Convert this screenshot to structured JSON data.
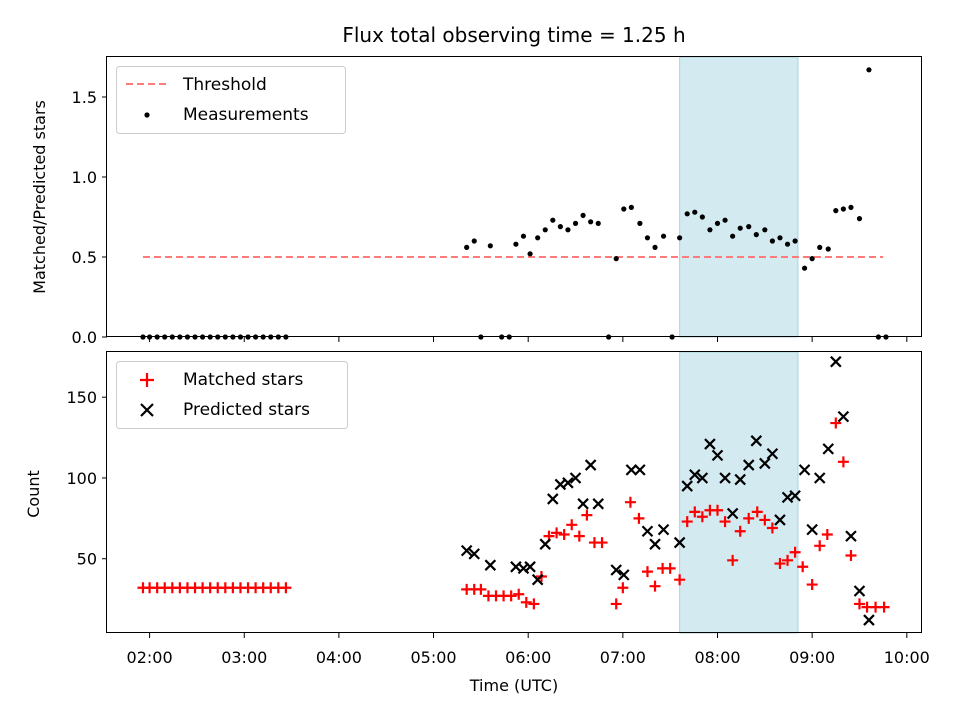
{
  "chart_data": [
    {
      "type": "scatter",
      "title": "Flux total observing time = 1.25 h",
      "ylabel": "Matched/Predicted stars",
      "xlabel": "",
      "xlim": [
        1.55,
        10.15
      ],
      "ylim": [
        0,
        1.75
      ],
      "yticks": [
        0.0,
        0.5,
        1.0,
        1.5
      ],
      "ytick_labels": [
        "0.0",
        "0.5",
        "1.0",
        "1.5"
      ],
      "xticks": [
        2,
        3,
        4,
        5,
        6,
        7,
        8,
        9,
        10
      ],
      "shaded_span": [
        7.6,
        8.85
      ],
      "shade_color": "#d3eaf1",
      "legend": "top-left",
      "threshold": {
        "name": "Threshold",
        "y": 0.5,
        "x": [
          1.93,
          9.75
        ],
        "color": "#ff7b7b"
      },
      "series": [
        {
          "name": "Measurements",
          "color": "#000000",
          "points": [
            [
              1.93,
              0.0
            ],
            [
              2.0,
              0.0
            ],
            [
              2.08,
              0.0
            ],
            [
              2.16,
              0.0
            ],
            [
              2.24,
              0.0
            ],
            [
              2.32,
              0.0
            ],
            [
              2.4,
              0.0
            ],
            [
              2.48,
              0.0
            ],
            [
              2.56,
              0.0
            ],
            [
              2.64,
              0.0
            ],
            [
              2.72,
              0.0
            ],
            [
              2.8,
              0.0
            ],
            [
              2.88,
              0.0
            ],
            [
              2.96,
              0.0
            ],
            [
              3.04,
              0.0
            ],
            [
              3.12,
              0.0
            ],
            [
              3.2,
              0.0
            ],
            [
              3.28,
              0.0
            ],
            [
              3.36,
              0.0
            ],
            [
              3.44,
              0.0
            ],
            [
              5.35,
              0.56
            ],
            [
              5.43,
              0.6
            ],
            [
              5.5,
              0.0
            ],
            [
              5.6,
              0.57
            ],
            [
              5.72,
              0.0
            ],
            [
              5.8,
              0.0
            ],
            [
              5.87,
              0.58
            ],
            [
              5.95,
              0.63
            ],
            [
              6.02,
              0.52
            ],
            [
              6.1,
              0.62
            ],
            [
              6.18,
              0.67
            ],
            [
              6.26,
              0.73
            ],
            [
              6.34,
              0.69
            ],
            [
              6.42,
              0.67
            ],
            [
              6.5,
              0.71
            ],
            [
              6.58,
              0.76
            ],
            [
              6.66,
              0.72
            ],
            [
              6.74,
              0.71
            ],
            [
              6.85,
              0.0
            ],
            [
              6.93,
              0.49
            ],
            [
              7.01,
              0.8
            ],
            [
              7.09,
              0.81
            ],
            [
              7.18,
              0.71
            ],
            [
              7.26,
              0.62
            ],
            [
              7.34,
              0.56
            ],
            [
              7.43,
              0.63
            ],
            [
              7.52,
              0.0
            ],
            [
              7.6,
              0.62
            ],
            [
              7.68,
              0.77
            ],
            [
              7.76,
              0.78
            ],
            [
              7.84,
              0.75
            ],
            [
              7.92,
              0.67
            ],
            [
              8.0,
              0.71
            ],
            [
              8.08,
              0.73
            ],
            [
              8.16,
              0.63
            ],
            [
              8.24,
              0.68
            ],
            [
              8.33,
              0.69
            ],
            [
              8.41,
              0.64
            ],
            [
              8.5,
              0.67
            ],
            [
              8.58,
              0.6
            ],
            [
              8.66,
              0.62
            ],
            [
              8.74,
              0.58
            ],
            [
              8.82,
              0.6
            ],
            [
              8.92,
              0.43
            ],
            [
              9.0,
              0.49
            ],
            [
              9.08,
              0.56
            ],
            [
              9.17,
              0.55
            ],
            [
              9.25,
              0.79
            ],
            [
              9.33,
              0.8
            ],
            [
              9.41,
              0.81
            ],
            [
              9.5,
              0.74
            ],
            [
              9.6,
              1.67
            ],
            [
              9.7,
              0.0
            ],
            [
              9.78,
              0.0
            ]
          ]
        }
      ]
    },
    {
      "type": "scatter",
      "title": "",
      "ylabel": "Count",
      "xlabel": "Time (UTC)",
      "xlim": [
        1.55,
        10.15
      ],
      "ylim": [
        4,
        178
      ],
      "yticks": [
        50,
        100,
        150
      ],
      "ytick_labels": [
        "50",
        "100",
        "150"
      ],
      "xticks": [
        2,
        3,
        4,
        5,
        6,
        7,
        8,
        9,
        10
      ],
      "xtick_labels": [
        "02:00",
        "03:00",
        "04:00",
        "05:00",
        "06:00",
        "07:00",
        "08:00",
        "09:00",
        "10:00"
      ],
      "shaded_span": [
        7.6,
        8.85
      ],
      "shade_color": "#d3eaf1",
      "legend": "top-left",
      "series": [
        {
          "name": "Matched stars",
          "color": "#ff0000",
          "marker": "plus",
          "points": [
            [
              1.93,
              32
            ],
            [
              2.0,
              32
            ],
            [
              2.08,
              32
            ],
            [
              2.16,
              32
            ],
            [
              2.24,
              32
            ],
            [
              2.32,
              32
            ],
            [
              2.4,
              32
            ],
            [
              2.48,
              32
            ],
            [
              2.56,
              32
            ],
            [
              2.64,
              32
            ],
            [
              2.72,
              32
            ],
            [
              2.8,
              32
            ],
            [
              2.88,
              32
            ],
            [
              2.96,
              32
            ],
            [
              3.04,
              32
            ],
            [
              3.12,
              32
            ],
            [
              3.2,
              32
            ],
            [
              3.28,
              32
            ],
            [
              3.36,
              32
            ],
            [
              3.44,
              32
            ],
            [
              5.35,
              31
            ],
            [
              5.43,
              31
            ],
            [
              5.5,
              31
            ],
            [
              5.58,
              27
            ],
            [
              5.66,
              27
            ],
            [
              5.74,
              27
            ],
            [
              5.82,
              27
            ],
            [
              5.9,
              28
            ],
            [
              5.98,
              23
            ],
            [
              6.06,
              22
            ],
            [
              6.14,
              39
            ],
            [
              6.22,
              64
            ],
            [
              6.3,
              66
            ],
            [
              6.38,
              65
            ],
            [
              6.46,
              71
            ],
            [
              6.54,
              64
            ],
            [
              6.62,
              77
            ],
            [
              6.7,
              60
            ],
            [
              6.78,
              60
            ],
            [
              6.93,
              22
            ],
            [
              7.0,
              32
            ],
            [
              7.08,
              85
            ],
            [
              7.17,
              75
            ],
            [
              7.26,
              42
            ],
            [
              7.34,
              33
            ],
            [
              7.42,
              44
            ],
            [
              7.5,
              44
            ],
            [
              7.6,
              37
            ],
            [
              7.68,
              73
            ],
            [
              7.76,
              79
            ],
            [
              7.84,
              76
            ],
            [
              7.92,
              80
            ],
            [
              8.0,
              80
            ],
            [
              8.08,
              73
            ],
            [
              8.16,
              49
            ],
            [
              8.24,
              67
            ],
            [
              8.33,
              75
            ],
            [
              8.42,
              79
            ],
            [
              8.5,
              74
            ],
            [
              8.58,
              69
            ],
            [
              8.66,
              47
            ],
            [
              8.74,
              49
            ],
            [
              8.82,
              54
            ],
            [
              8.9,
              45
            ],
            [
              9.0,
              34
            ],
            [
              9.08,
              58
            ],
            [
              9.16,
              65
            ],
            [
              9.25,
              134
            ],
            [
              9.33,
              110
            ],
            [
              9.41,
              52
            ],
            [
              9.5,
              22
            ],
            [
              9.58,
              20
            ],
            [
              9.67,
              20
            ],
            [
              9.76,
              20
            ]
          ]
        },
        {
          "name": "Predicted stars",
          "color": "#000000",
          "marker": "x",
          "points": [
            [
              5.35,
              55
            ],
            [
              5.43,
              53
            ],
            [
              5.6,
              46
            ],
            [
              5.87,
              45
            ],
            [
              5.95,
              44
            ],
            [
              6.02,
              45
            ],
            [
              6.1,
              37
            ],
            [
              6.18,
              59
            ],
            [
              6.26,
              87
            ],
            [
              6.34,
              96
            ],
            [
              6.42,
              97
            ],
            [
              6.5,
              100
            ],
            [
              6.58,
              84
            ],
            [
              6.66,
              108
            ],
            [
              6.74,
              84
            ],
            [
              6.93,
              43
            ],
            [
              7.01,
              40
            ],
            [
              7.09,
              105
            ],
            [
              7.18,
              105
            ],
            [
              7.26,
              67
            ],
            [
              7.34,
              59
            ],
            [
              7.43,
              68
            ],
            [
              7.6,
              60
            ],
            [
              7.68,
              95
            ],
            [
              7.76,
              102
            ],
            [
              7.84,
              100
            ],
            [
              7.92,
              121
            ],
            [
              8.0,
              114
            ],
            [
              8.08,
              100
            ],
            [
              8.16,
              78
            ],
            [
              8.24,
              99
            ],
            [
              8.33,
              108
            ],
            [
              8.41,
              123
            ],
            [
              8.5,
              109
            ],
            [
              8.58,
              115
            ],
            [
              8.66,
              74
            ],
            [
              8.74,
              88
            ],
            [
              8.82,
              89
            ],
            [
              8.92,
              105
            ],
            [
              9.0,
              68
            ],
            [
              9.08,
              100
            ],
            [
              9.17,
              118
            ],
            [
              9.25,
              172
            ],
            [
              9.33,
              138
            ],
            [
              9.41,
              64
            ],
            [
              9.5,
              30
            ],
            [
              9.6,
              12
            ]
          ]
        }
      ]
    }
  ]
}
